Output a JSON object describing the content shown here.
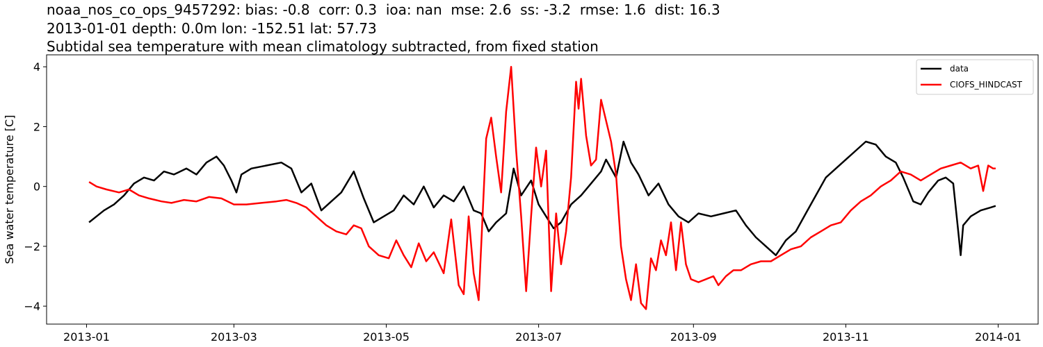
{
  "title_lines": [
    "noaa_nos_co_ops_9457292: bias: -0.8  corr: 0.3  ioa: nan  mse: 2.6  ss: -3.2  rmse: 1.6  dist: 16.3",
    "2013-01-01 depth: 0.0m lon: -152.51 lat: 57.73",
    "Subtidal sea temperature with mean climatology subtracted, from fixed station"
  ],
  "chart_data": {
    "type": "line",
    "ylabel": "Sea water temperature [C]",
    "xlabel": "",
    "xlim": [
      "2012-12-16",
      "2014-01-17"
    ],
    "ylim": [
      -4.6,
      4.4
    ],
    "x_ticks": [
      "2013-01",
      "2013-03",
      "2013-05",
      "2013-07",
      "2013-09",
      "2013-11",
      "2014-01"
    ],
    "y_ticks": [
      -4,
      -2,
      0,
      2,
      4
    ],
    "y_tick_labels": [
      "−4",
      "−2",
      "0",
      "2",
      "4"
    ],
    "grid": false,
    "legend_position": "top-right",
    "series": [
      {
        "name": "data",
        "color": "#000000",
        "points": [
          [
            "2013-01-02",
            -1.2
          ],
          [
            "2013-01-05",
            -1.0
          ],
          [
            "2013-01-08",
            -0.8
          ],
          [
            "2013-01-12",
            -0.6
          ],
          [
            "2013-01-16",
            -0.3
          ],
          [
            "2013-01-20",
            0.1
          ],
          [
            "2013-01-24",
            0.3
          ],
          [
            "2013-01-28",
            0.2
          ],
          [
            "2013-02-01",
            0.5
          ],
          [
            "2013-02-05",
            0.4
          ],
          [
            "2013-02-10",
            0.6
          ],
          [
            "2013-02-14",
            0.4
          ],
          [
            "2013-02-18",
            0.8
          ],
          [
            "2013-02-22",
            1.0
          ],
          [
            "2013-02-25",
            0.7
          ],
          [
            "2013-02-28",
            0.2
          ],
          [
            "2013-03-02",
            -0.2
          ],
          [
            "2013-03-04",
            0.4
          ],
          [
            "2013-03-08",
            0.6
          ],
          [
            "2013-03-14",
            0.7
          ],
          [
            "2013-03-20",
            0.8
          ],
          [
            "2013-03-24",
            0.6
          ],
          [
            "2013-03-28",
            -0.2
          ],
          [
            "2013-04-01",
            0.1
          ],
          [
            "2013-04-05",
            -0.8
          ],
          [
            "2013-04-09",
            -0.5
          ],
          [
            "2013-04-13",
            -0.2
          ],
          [
            "2013-04-18",
            0.5
          ],
          [
            "2013-04-22",
            -0.4
          ],
          [
            "2013-04-26",
            -1.2
          ],
          [
            "2013-04-30",
            -1.0
          ],
          [
            "2013-05-04",
            -0.8
          ],
          [
            "2013-05-08",
            -0.3
          ],
          [
            "2013-05-12",
            -0.6
          ],
          [
            "2013-05-16",
            0.0
          ],
          [
            "2013-05-20",
            -0.7
          ],
          [
            "2013-05-24",
            -0.3
          ],
          [
            "2013-05-28",
            -0.5
          ],
          [
            "2013-06-01",
            0.0
          ],
          [
            "2013-06-05",
            -0.8
          ],
          [
            "2013-06-08",
            -0.9
          ],
          [
            "2013-06-11",
            -1.5
          ],
          [
            "2013-06-14",
            -1.2
          ],
          [
            "2013-06-18",
            -0.9
          ],
          [
            "2013-06-21",
            0.6
          ],
          [
            "2013-06-24",
            -0.3
          ],
          [
            "2013-06-28",
            0.2
          ],
          [
            "2013-07-01",
            -0.6
          ],
          [
            "2013-07-04",
            -1.0
          ],
          [
            "2013-07-07",
            -1.4
          ],
          [
            "2013-07-10",
            -1.2
          ],
          [
            "2013-07-14",
            -0.6
          ],
          [
            "2013-07-18",
            -0.3
          ],
          [
            "2013-07-22",
            0.1
          ],
          [
            "2013-07-26",
            0.5
          ],
          [
            "2013-07-28",
            0.9
          ],
          [
            "2013-08-01",
            0.3
          ],
          [
            "2013-08-04",
            1.5
          ],
          [
            "2013-08-07",
            0.8
          ],
          [
            "2013-08-10",
            0.4
          ],
          [
            "2013-08-14",
            -0.3
          ],
          [
            "2013-08-18",
            0.1
          ],
          [
            "2013-08-22",
            -0.6
          ],
          [
            "2013-08-26",
            -1.0
          ],
          [
            "2013-08-30",
            -1.2
          ],
          [
            "2013-09-03",
            -0.9
          ],
          [
            "2013-09-08",
            -1.0
          ],
          [
            "2013-09-13",
            -0.9
          ],
          [
            "2013-09-18",
            -0.8
          ],
          [
            "2013-09-22",
            -1.3
          ],
          [
            "2013-09-26",
            -1.7
          ],
          [
            "2013-09-30",
            -2.0
          ],
          [
            "2013-10-04",
            -2.3
          ],
          [
            "2013-10-08",
            -1.8
          ],
          [
            "2013-10-12",
            -1.5
          ],
          [
            "2013-10-16",
            -0.9
          ],
          [
            "2013-10-20",
            -0.3
          ],
          [
            "2013-10-24",
            0.3
          ],
          [
            "2013-10-28",
            0.6
          ],
          [
            "2013-11-01",
            0.9
          ],
          [
            "2013-11-05",
            1.2
          ],
          [
            "2013-11-09",
            1.5
          ],
          [
            "2013-11-13",
            1.4
          ],
          [
            "2013-11-17",
            1.0
          ],
          [
            "2013-11-21",
            0.8
          ],
          [
            "2013-11-24",
            0.3
          ],
          [
            "2013-11-28",
            -0.5
          ],
          [
            "2013-12-01",
            -0.6
          ],
          [
            "2013-12-04",
            -0.2
          ],
          [
            "2013-12-08",
            0.2
          ],
          [
            "2013-12-11",
            0.3
          ],
          [
            "2013-12-14",
            0.1
          ],
          [
            "2013-12-16",
            -1.5
          ],
          [
            "2013-12-17",
            -2.3
          ],
          [
            "2013-12-18",
            -1.3
          ],
          [
            "2013-12-21",
            -1.0
          ],
          [
            "2013-12-25",
            -0.8
          ],
          [
            "2013-12-29",
            -0.7
          ],
          [
            "2013-12-31",
            -0.65
          ]
        ]
      },
      {
        "name": "CIOFS_HINDCAST",
        "color": "#ff0000",
        "points": [
          [
            "2013-01-02",
            0.15
          ],
          [
            "2013-01-05",
            0.0
          ],
          [
            "2013-01-09",
            -0.1
          ],
          [
            "2013-01-14",
            -0.2
          ],
          [
            "2013-01-18",
            -0.1
          ],
          [
            "2013-01-22",
            -0.3
          ],
          [
            "2013-01-26",
            -0.4
          ],
          [
            "2013-01-31",
            -0.5
          ],
          [
            "2013-02-04",
            -0.55
          ],
          [
            "2013-02-09",
            -0.45
          ],
          [
            "2013-02-14",
            -0.5
          ],
          [
            "2013-02-19",
            -0.35
          ],
          [
            "2013-02-24",
            -0.4
          ],
          [
            "2013-03-01",
            -0.6
          ],
          [
            "2013-03-06",
            -0.6
          ],
          [
            "2013-03-12",
            -0.55
          ],
          [
            "2013-03-18",
            -0.5
          ],
          [
            "2013-03-22",
            -0.45
          ],
          [
            "2013-03-26",
            -0.55
          ],
          [
            "2013-03-30",
            -0.7
          ],
          [
            "2013-04-03",
            -1.0
          ],
          [
            "2013-04-07",
            -1.3
          ],
          [
            "2013-04-11",
            -1.5
          ],
          [
            "2013-04-15",
            -1.6
          ],
          [
            "2013-04-18",
            -1.3
          ],
          [
            "2013-04-21",
            -1.4
          ],
          [
            "2013-04-24",
            -2.0
          ],
          [
            "2013-04-28",
            -2.3
          ],
          [
            "2013-05-02",
            -2.4
          ],
          [
            "2013-05-05",
            -1.8
          ],
          [
            "2013-05-08",
            -2.3
          ],
          [
            "2013-05-11",
            -2.7
          ],
          [
            "2013-05-14",
            -1.9
          ],
          [
            "2013-05-17",
            -2.5
          ],
          [
            "2013-05-20",
            -2.2
          ],
          [
            "2013-05-24",
            -2.9
          ],
          [
            "2013-05-27",
            -1.1
          ],
          [
            "2013-05-30",
            -3.3
          ],
          [
            "2013-06-01",
            -3.6
          ],
          [
            "2013-06-03",
            -1.0
          ],
          [
            "2013-06-05",
            -2.9
          ],
          [
            "2013-06-07",
            -3.8
          ],
          [
            "2013-06-10",
            1.6
          ],
          [
            "2013-06-12",
            2.3
          ],
          [
            "2013-06-14",
            1.0
          ],
          [
            "2013-06-16",
            -0.2
          ],
          [
            "2013-06-18",
            2.5
          ],
          [
            "2013-06-20",
            4.0
          ],
          [
            "2013-06-22",
            1.2
          ],
          [
            "2013-06-24",
            -1.0
          ],
          [
            "2013-06-26",
            -3.5
          ],
          [
            "2013-06-28",
            -1.0
          ],
          [
            "2013-06-30",
            1.3
          ],
          [
            "2013-07-02",
            0.0
          ],
          [
            "2013-07-04",
            1.2
          ],
          [
            "2013-07-06",
            -3.5
          ],
          [
            "2013-07-08",
            -0.9
          ],
          [
            "2013-07-10",
            -2.6
          ],
          [
            "2013-07-12",
            -1.5
          ],
          [
            "2013-07-14",
            0.3
          ],
          [
            "2013-07-16",
            3.5
          ],
          [
            "2013-07-17",
            2.6
          ],
          [
            "2013-07-18",
            3.6
          ],
          [
            "2013-07-20",
            1.7
          ],
          [
            "2013-07-22",
            0.7
          ],
          [
            "2013-07-24",
            0.9
          ],
          [
            "2013-07-26",
            2.9
          ],
          [
            "2013-07-28",
            2.2
          ],
          [
            "2013-07-30",
            1.5
          ],
          [
            "2013-08-01",
            0.4
          ],
          [
            "2013-08-03",
            -2.0
          ],
          [
            "2013-08-05",
            -3.1
          ],
          [
            "2013-08-07",
            -3.8
          ],
          [
            "2013-08-09",
            -2.6
          ],
          [
            "2013-08-11",
            -3.9
          ],
          [
            "2013-08-13",
            -4.1
          ],
          [
            "2013-08-15",
            -2.4
          ],
          [
            "2013-08-17",
            -2.8
          ],
          [
            "2013-08-19",
            -1.8
          ],
          [
            "2013-08-21",
            -2.3
          ],
          [
            "2013-08-23",
            -1.2
          ],
          [
            "2013-08-25",
            -2.8
          ],
          [
            "2013-08-27",
            -1.2
          ],
          [
            "2013-08-29",
            -2.6
          ],
          [
            "2013-08-31",
            -3.1
          ],
          [
            "2013-09-03",
            -3.2
          ],
          [
            "2013-09-06",
            -3.1
          ],
          [
            "2013-09-09",
            -3.0
          ],
          [
            "2013-09-11",
            -3.3
          ],
          [
            "2013-09-14",
            -3.0
          ],
          [
            "2013-09-17",
            -2.8
          ],
          [
            "2013-09-20",
            -2.8
          ],
          [
            "2013-09-24",
            -2.6
          ],
          [
            "2013-09-28",
            -2.5
          ],
          [
            "2013-10-02",
            -2.5
          ],
          [
            "2013-10-06",
            -2.3
          ],
          [
            "2013-10-10",
            -2.1
          ],
          [
            "2013-10-14",
            -2.0
          ],
          [
            "2013-10-18",
            -1.7
          ],
          [
            "2013-10-22",
            -1.5
          ],
          [
            "2013-10-26",
            -1.3
          ],
          [
            "2013-10-30",
            -1.2
          ],
          [
            "2013-11-03",
            -0.8
          ],
          [
            "2013-11-07",
            -0.5
          ],
          [
            "2013-11-11",
            -0.3
          ],
          [
            "2013-11-15",
            0.0
          ],
          [
            "2013-11-19",
            0.2
          ],
          [
            "2013-11-23",
            0.5
          ],
          [
            "2013-11-27",
            0.4
          ],
          [
            "2013-12-01",
            0.2
          ],
          [
            "2013-12-05",
            0.4
          ],
          [
            "2013-12-09",
            0.6
          ],
          [
            "2013-12-13",
            0.7
          ],
          [
            "2013-12-17",
            0.8
          ],
          [
            "2013-12-21",
            0.6
          ],
          [
            "2013-12-24",
            0.7
          ],
          [
            "2013-12-26",
            -0.15
          ],
          [
            "2013-12-28",
            0.7
          ],
          [
            "2013-12-30",
            0.6
          ],
          [
            "2013-12-31",
            0.6
          ]
        ]
      }
    ]
  }
}
